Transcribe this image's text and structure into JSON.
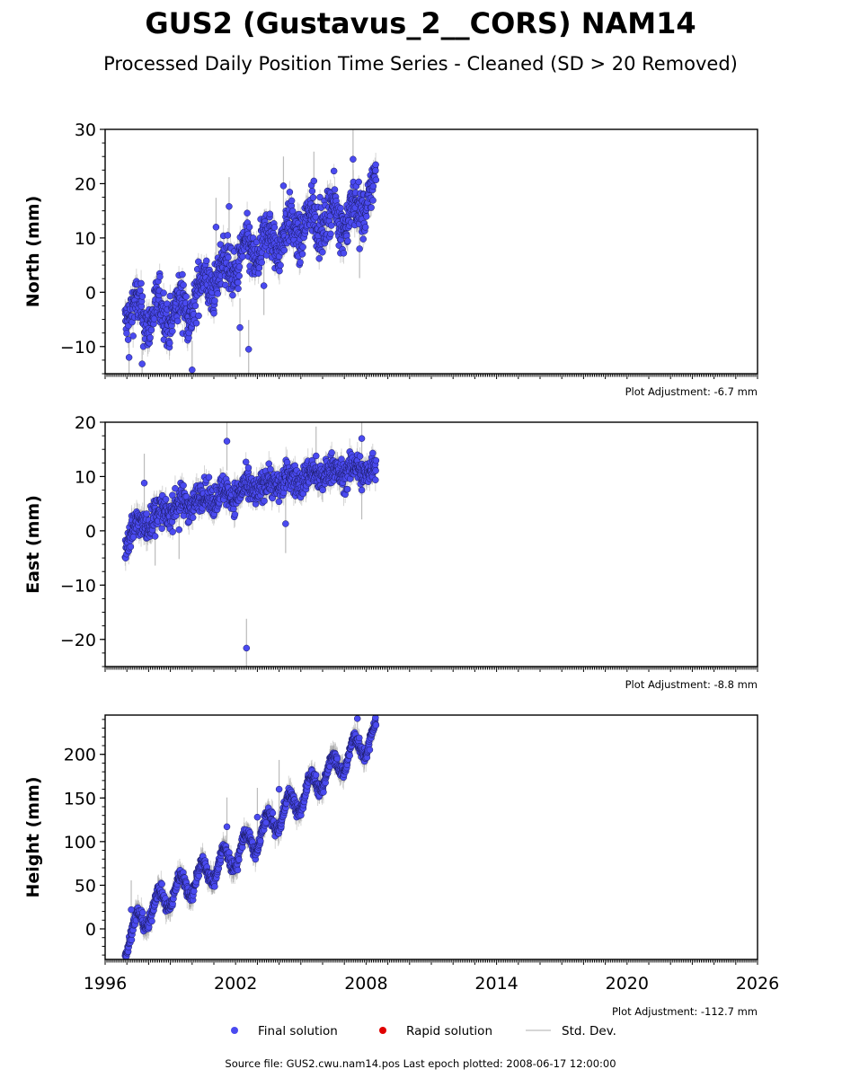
{
  "chart_data": {
    "type": "scatter",
    "title": "GUS2 (Gustavus_2__CORS) NAM14",
    "subtitle": "Processed Daily Position Time Series - Cleaned (SD > 20 Removed)",
    "x_range": [
      1996,
      2026
    ],
    "x_ticks": [
      1996,
      2002,
      2008,
      2014,
      2020,
      2026
    ],
    "x_tick_labels": [
      "1996",
      "2002",
      "2008",
      "2014",
      "2020",
      "2026"
    ],
    "grid": false,
    "legend_position": "bottom-center",
    "colors": {
      "final": "#4a4af0",
      "final_edge": "#1a1a60",
      "rapid": "#e00000",
      "std": "#bbbbbb"
    },
    "panels": [
      {
        "id": "north",
        "ylabel": "North (mm)",
        "ylim": [
          -15,
          30
        ],
        "y_ticks": [
          -10,
          0,
          10,
          20,
          30
        ],
        "y_tick_labels": [
          "−10",
          "0",
          "10",
          "20",
          "30"
        ],
        "adjustment": "Plot Adjustment: -6.7 mm",
        "trend": [
          [
            1996.9,
            -3
          ],
          [
            1997.5,
            -4
          ],
          [
            1998.5,
            -4
          ],
          [
            1999.8,
            -3
          ],
          [
            2000.5,
            1
          ],
          [
            2001.5,
            4
          ],
          [
            2002.5,
            7
          ],
          [
            2003.5,
            9
          ],
          [
            2004.5,
            11
          ],
          [
            2005.5,
            13
          ],
          [
            2006.5,
            14
          ],
          [
            2007.5,
            14
          ],
          [
            2008.3,
            19
          ]
        ],
        "seasonal_amp": 2.5,
        "noise": 2.2,
        "outliers": [
          [
            1997.1,
            -12
          ],
          [
            1997.7,
            -13.2
          ],
          [
            2000.0,
            -14.3
          ],
          [
            2001.1,
            12
          ],
          [
            2001.7,
            15.8
          ],
          [
            2002.2,
            -6.5
          ],
          [
            2002.6,
            -10.5
          ],
          [
            2003.3,
            1.2
          ],
          [
            2004.2,
            19.6
          ],
          [
            2005.6,
            20.5
          ],
          [
            2007.4,
            24.5
          ],
          [
            2007.7,
            8
          ]
        ]
      },
      {
        "id": "east",
        "ylabel": "East (mm)",
        "ylim": [
          -25,
          20
        ],
        "y_ticks": [
          -20,
          -10,
          0,
          10,
          20
        ],
        "y_tick_labels": [
          "−20",
          "−10",
          "0",
          "10",
          "20"
        ],
        "adjustment": "Plot Adjustment: -8.8 mm",
        "trend": [
          [
            1996.9,
            -2
          ],
          [
            1997.2,
            0
          ],
          [
            1998.0,
            2
          ],
          [
            1999.0,
            4
          ],
          [
            2000.0,
            5.5
          ],
          [
            2001.0,
            6.5
          ],
          [
            2002.0,
            7
          ],
          [
            2003.0,
            8
          ],
          [
            2004.0,
            9
          ],
          [
            2005.0,
            9.5
          ],
          [
            2006.0,
            10.5
          ],
          [
            2007.0,
            11
          ],
          [
            2008.3,
            11.5
          ]
        ],
        "seasonal_amp": 1.0,
        "noise": 1.4,
        "outliers": [
          [
            1997.8,
            8.8
          ],
          [
            1998.3,
            -1
          ],
          [
            1999.4,
            0.2
          ],
          [
            2001.6,
            16.5
          ],
          [
            2002.5,
            -21.6
          ],
          [
            2004.3,
            1.3
          ],
          [
            2005.7,
            13.8
          ],
          [
            2007.8,
            17
          ],
          [
            2007.8,
            7.5
          ]
        ]
      },
      {
        "id": "height",
        "ylabel": "Height (mm)",
        "ylim": [
          -35,
          245
        ],
        "y_ticks": [
          0,
          50,
          100,
          150,
          200
        ],
        "y_tick_labels": [
          "0",
          "50",
          "100",
          "150",
          "200"
        ],
        "adjustment": "Plot Adjustment: -112.7 mm",
        "trend": [
          [
            1996.9,
            -15
          ],
          [
            1998.0,
            20
          ],
          [
            1999.0,
            40
          ],
          [
            2000.0,
            55
          ],
          [
            2001.0,
            70
          ],
          [
            2002.0,
            85
          ],
          [
            2003.0,
            105
          ],
          [
            2004.0,
            130
          ],
          [
            2005.0,
            150
          ],
          [
            2006.0,
            175
          ],
          [
            2007.0,
            195
          ],
          [
            2008.3,
            220
          ]
        ],
        "seasonal_amp": 15,
        "noise": 4,
        "outliers": [
          [
            1997.2,
            22
          ],
          [
            2001.6,
            117
          ],
          [
            2003.0,
            128
          ],
          [
            2004.0,
            160
          ],
          [
            2007.6,
            241
          ]
        ]
      }
    ]
  },
  "legend": {
    "final": "Final solution",
    "rapid": "Rapid solution",
    "std": "Std. Dev."
  },
  "footer": "Source file: GUS2.cwu.nam14.pos  Last epoch plotted: 2008-06-17 12:00:00"
}
